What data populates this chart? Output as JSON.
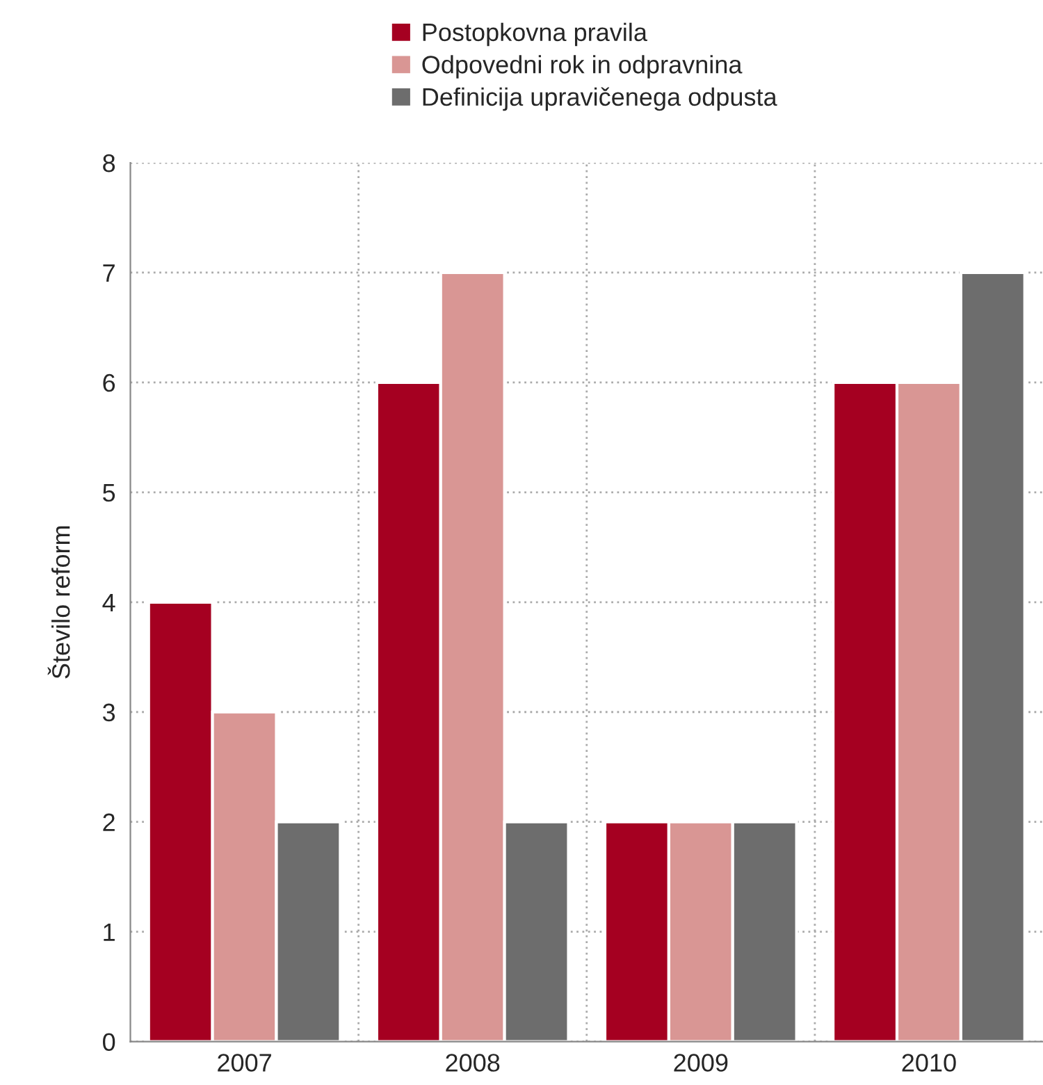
{
  "chart_data": {
    "type": "bar",
    "ylabel": "Število reform",
    "categories": [
      "2007",
      "2008",
      "2009",
      "2010"
    ],
    "series": [
      {
        "name": "Postopkovna pravila",
        "color": "#a50021",
        "values": [
          4,
          6,
          2,
          6
        ]
      },
      {
        "name": "Odpovedni rok in odpravnina",
        "color": "#d99694",
        "values": [
          3,
          7,
          2,
          6
        ]
      },
      {
        "name": "Definicija upravičenega odpusta",
        "color": "#6d6d6d",
        "values": [
          2,
          2,
          2,
          7
        ]
      }
    ],
    "ylim": [
      0,
      8
    ],
    "yticks": [
      0,
      1,
      2,
      3,
      4,
      5,
      6,
      7,
      8
    ],
    "grid": true,
    "legend": "top"
  }
}
